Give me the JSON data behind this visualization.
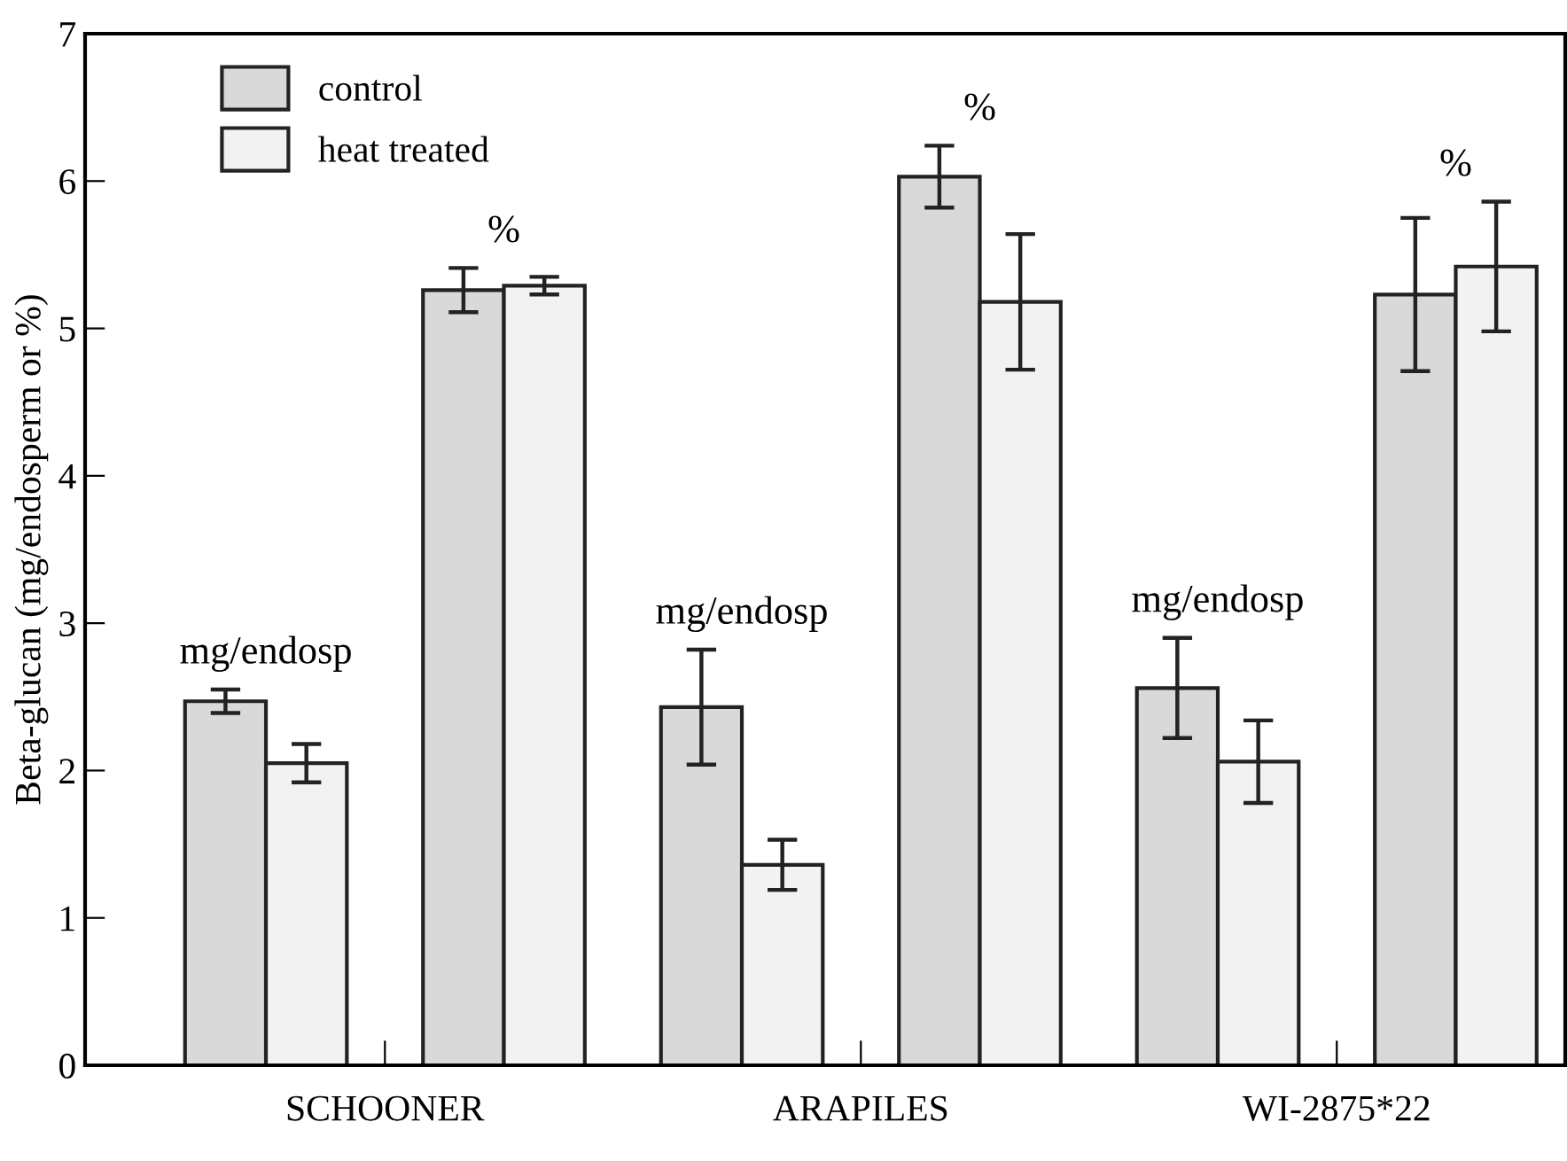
{
  "chart_data": {
    "type": "bar",
    "ylabel": "Beta-glucan (mg/endosperm or %)",
    "categories": [
      "SCHOONER",
      "ARAPILES",
      "WI-2875*22"
    ],
    "series": [
      {
        "name": "control",
        "color": "#d9d9d9",
        "values": [
          2.47,
          2.43,
          2.56
        ],
        "errors": [
          0.08,
          0.39,
          0.34
        ]
      },
      {
        "name": "heat treated",
        "color": "#f2f2f2",
        "values": [
          2.05,
          1.36,
          2.06
        ],
        "errors": [
          0.13,
          0.17,
          0.28
        ]
      },
      {
        "color": "#d9d9d9",
        "values": [
          5.26,
          6.03,
          5.23
        ],
        "errors": [
          0.15,
          0.21,
          0.52
        ]
      },
      {
        "color": "#f2f2f2",
        "values": [
          5.29,
          5.18,
          5.42
        ],
        "errors": [
          0.06,
          0.46,
          0.44
        ]
      }
    ],
    "annotations": [
      "mg/endosp",
      "%",
      "mg/endosp",
      "%",
      "mg/endosp",
      "%"
    ],
    "ylim": [
      0,
      7
    ],
    "yticks": [
      0,
      1,
      2,
      3,
      4,
      5,
      6,
      7
    ],
    "grid": false,
    "legend": "top left"
  }
}
